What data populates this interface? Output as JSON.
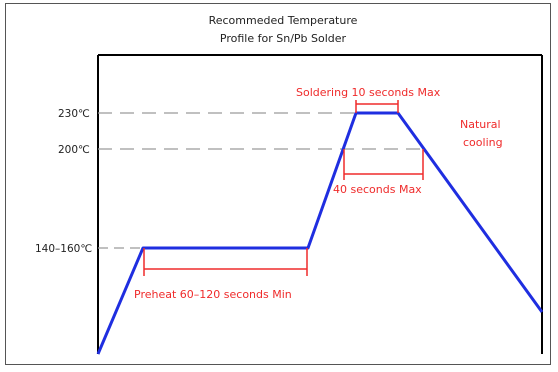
{
  "title": {
    "line1": "Recommeded Temperature",
    "line2": "Profile for Sn/Pb Solder"
  },
  "y_labels": {
    "t230": "230℃",
    "t200": "200℃",
    "t140": "140–160℃"
  },
  "annotations": {
    "soldering": "Soldering 10 seconds Max",
    "natural_line1": "Natural",
    "natural_line2": "cooling",
    "forty_seconds": "40 seconds Max",
    "preheat": "Preheat 60–120 seconds Min"
  },
  "colors": {
    "profile": "#1f2ee0",
    "annotation": "#ef2b2b",
    "guide": "#9a9a9a",
    "axis": "#000000"
  }
}
